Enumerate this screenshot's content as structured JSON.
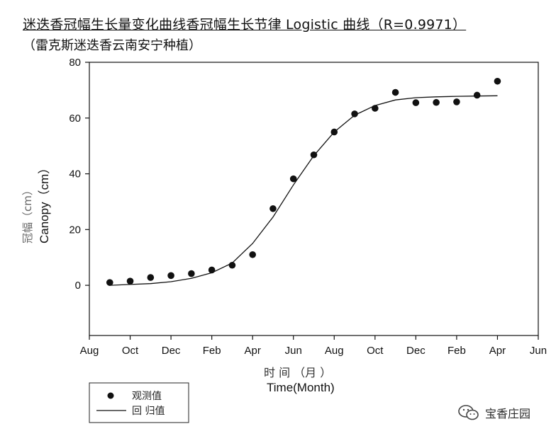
{
  "header": {
    "title": "迷迭香冠幅生长量变化曲线香冠幅生长节律 Logistic 曲线（R=0.9971）",
    "subtitle": "（雷克斯迷迭香云南安宁种植）"
  },
  "chart_data": {
    "type": "scatter",
    "ylabel_cn": "冠幅（cm）",
    "ylabel_en": "Canopy（cm）",
    "xlabel_cn": "时 间 （月 ）",
    "xlabel_en": "Time(Month)",
    "x_ticks": [
      "Aug",
      "Oct",
      "Dec",
      "Feb",
      "Apr",
      "Jun",
      "Aug",
      "Oct",
      "Dec",
      "Feb",
      "Apr",
      "Jun"
    ],
    "y_ticks": [
      "0",
      "20",
      "40",
      "60",
      "80"
    ],
    "xlim": [
      0,
      22
    ],
    "ylim": [
      -18,
      80
    ],
    "grid": false,
    "legend_position": "bottom-left-outside",
    "series": [
      {
        "name": "观测值",
        "kind": "points",
        "x": [
          1,
          2,
          3,
          4,
          5,
          6,
          7,
          8,
          9,
          10,
          11,
          12,
          13,
          14,
          15,
          16,
          17,
          18,
          19,
          20
        ],
        "y": [
          1.0,
          1.5,
          2.8,
          3.5,
          4.2,
          5.5,
          7.2,
          11,
          27.5,
          38.2,
          46.8,
          55,
          61.5,
          63.5,
          69.2,
          65.5,
          65.6,
          65.8,
          68.2,
          73.2
        ]
      },
      {
        "name": "回 归值",
        "kind": "line",
        "x": [
          1,
          2,
          3,
          4,
          5,
          6,
          7,
          8,
          9,
          10,
          11,
          12,
          13,
          14,
          15,
          16,
          17,
          18,
          19,
          20
        ],
        "y": [
          0.0,
          0.3,
          0.6,
          1.3,
          2.5,
          4.5,
          8.0,
          15.0,
          24.5,
          36.0,
          46.5,
          55.0,
          61.0,
          64.5,
          66.5,
          67.3,
          67.6,
          67.8,
          67.9,
          68.0
        ]
      }
    ]
  },
  "watermark": {
    "text": "宝香庄园",
    "icon": "wechat-icon"
  }
}
